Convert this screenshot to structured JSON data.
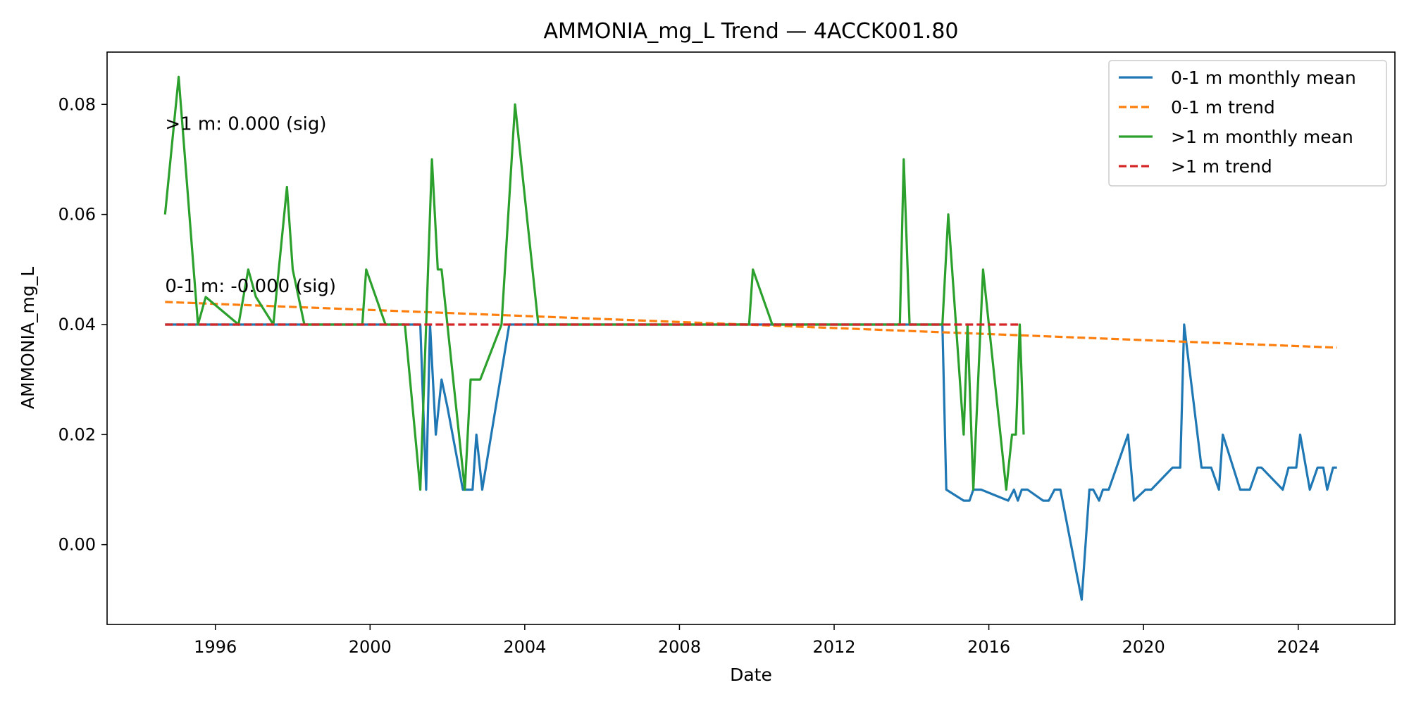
{
  "chart_data": {
    "type": "line",
    "title": "AMMONIA_mg_L Trend — 4ACCK001.80",
    "xlabel": "Date",
    "ylabel": "AMMONIA_mg_L",
    "xlim": [
      1993.2,
      2026.5
    ],
    "ylim": [
      -0.0145,
      0.0895
    ],
    "x_ticks": [
      1996,
      2000,
      2004,
      2008,
      2012,
      2016,
      2020,
      2024
    ],
    "y_ticks": [
      0.0,
      0.02,
      0.04,
      0.06,
      0.08
    ],
    "y_tick_labels": [
      "0.00",
      "0.02",
      "0.04",
      "0.06",
      "0.08"
    ],
    "legend_position": "top-right",
    "grid": false,
    "series": [
      {
        "name": "0-1 m monthly mean",
        "style": "solid",
        "color": "#1f77b4",
        "x": [
          1994.7,
          2001.3,
          2001.45,
          2001.55,
          2001.7,
          2001.85,
          2002.0,
          2002.4,
          2002.65,
          2002.75,
          2002.9,
          2003.6,
          2004.0,
          2009.9,
          2014.8,
          2014.9,
          2015.35,
          2015.5,
          2015.6,
          2015.8,
          2016.5,
          2016.65,
          2016.75,
          2016.85,
          2017.0,
          2017.4,
          2017.55,
          2017.7,
          2017.85,
          2018.4,
          2018.6,
          2018.7,
          2018.85,
          2018.95,
          2019.1,
          2019.6,
          2019.75,
          2020.05,
          2020.2,
          2020.75,
          2020.95,
          2021.05,
          2021.5,
          2021.75,
          2021.95,
          2022.05,
          2022.5,
          2022.75,
          2022.95,
          2023.05,
          2023.6,
          2023.75,
          2023.95,
          2024.05,
          2024.3,
          2024.5,
          2024.65,
          2024.75,
          2024.9,
          2025.0
        ],
        "y": [
          0.04,
          0.04,
          0.01,
          0.04,
          0.02,
          0.03,
          0.025,
          0.01,
          0.01,
          0.02,
          0.01,
          0.04,
          0.04,
          0.04,
          0.04,
          0.01,
          0.008,
          0.008,
          0.01,
          0.01,
          0.008,
          0.01,
          0.008,
          0.01,
          0.01,
          0.008,
          0.008,
          0.01,
          0.01,
          -0.01,
          0.01,
          0.01,
          0.008,
          0.01,
          0.01,
          0.02,
          0.008,
          0.01,
          0.01,
          0.014,
          0.014,
          0.04,
          0.014,
          0.014,
          0.01,
          0.02,
          0.01,
          0.01,
          0.014,
          0.014,
          0.01,
          0.014,
          0.014,
          0.02,
          0.01,
          0.014,
          0.014,
          0.01,
          0.014,
          0.014
        ]
      },
      {
        "name": "0-1 m trend",
        "style": "dashed",
        "color": "#ff7f0e",
        "x": [
          1994.7,
          2025.0
        ],
        "y": [
          0.0441,
          0.0358
        ]
      },
      {
        "name": ">1 m monthly mean",
        "style": "solid",
        "color": "#2ca02c",
        "x": [
          1994.7,
          1995.05,
          1995.55,
          1995.75,
          1996.6,
          1996.85,
          1997.05,
          1997.5,
          1997.85,
          1998.0,
          1998.3,
          1999.8,
          1999.9,
          2000.4,
          2000.9,
          2001.3,
          2001.45,
          2001.6,
          2001.75,
          2001.85,
          2002.45,
          2002.6,
          2002.75,
          2002.85,
          2003.4,
          2003.75,
          2004.35,
          2009.8,
          2009.9,
          2010.4,
          2013.7,
          2013.8,
          2013.95,
          2014.8,
          2014.95,
          2015.35,
          2015.45,
          2015.6,
          2015.85,
          2016.45,
          2016.6,
          2016.7,
          2016.8,
          2016.9
        ],
        "y": [
          0.06,
          0.085,
          0.04,
          0.045,
          0.04,
          0.05,
          0.045,
          0.04,
          0.065,
          0.05,
          0.04,
          0.04,
          0.05,
          0.04,
          0.04,
          0.01,
          0.04,
          0.07,
          0.05,
          0.05,
          0.01,
          0.03,
          0.03,
          0.03,
          0.04,
          0.08,
          0.04,
          0.04,
          0.05,
          0.04,
          0.04,
          0.07,
          0.04,
          0.04,
          0.06,
          0.02,
          0.04,
          0.01,
          0.05,
          0.01,
          0.02,
          0.02,
          0.04,
          0.02
        ]
      },
      {
        "name": ">1 m trend",
        "style": "dashed",
        "color": "#d62728",
        "x": [
          1994.7,
          2016.85
        ],
        "y": [
          0.04,
          0.04
        ]
      }
    ],
    "annotations": [
      {
        "text": ">1 m: 0.000 (sig)",
        "x": 1994.7,
        "y": 0.0765
      },
      {
        "text": "0-1 m: -0.000 (sig)",
        "x": 1994.7,
        "y": 0.047
      }
    ]
  }
}
